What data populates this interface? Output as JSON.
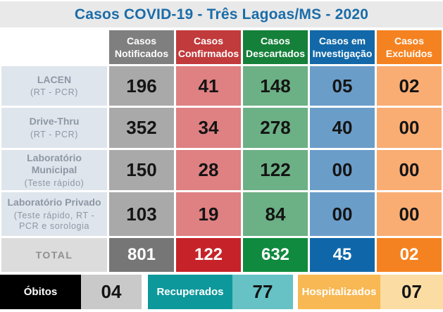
{
  "title": "Casos COVID-19 - Três Lagoas/MS - 2020",
  "header": {
    "columns": [
      "Casos\nNotificados",
      "Casos\nConfirmados",
      "Casos\nDescartados",
      "Casos em\nInvestigação",
      "Casos\nExcluídos"
    ]
  },
  "rows": [
    {
      "name": "LACEN",
      "sub": "(RT - PCR)",
      "values": [
        "196",
        "41",
        "148",
        "05",
        "02"
      ]
    },
    {
      "name": "Drive-Thru",
      "sub": "(RT - PCR)",
      "values": [
        "352",
        "34",
        "278",
        "40",
        "00"
      ]
    },
    {
      "name": "Laboratório Municipal",
      "sub": "(Teste rápido)",
      "values": [
        "150",
        "28",
        "122",
        "00",
        "00"
      ]
    },
    {
      "name": "Laboratório Privado",
      "sub": "(Teste rápido, RT - PCR e sorologia",
      "values": [
        "103",
        "19",
        "84",
        "00",
        "00"
      ]
    }
  ],
  "total": {
    "label": "TOTAL",
    "values": [
      "801",
      "122",
      "632",
      "45",
      "02"
    ]
  },
  "summary": [
    {
      "label": "Óbitos",
      "value": "04"
    },
    {
      "label": "Recuperados",
      "value": "77"
    },
    {
      "label": "Hospitalizados",
      "value": "07"
    }
  ],
  "colors": {
    "title_text": "#1b6ca8",
    "title_bar_bg": "#e9e9e9",
    "column_strong": [
      "#7f7f7f",
      "#c13a3c",
      "#15803a",
      "#1268a8",
      "#f58220"
    ],
    "column_light": [
      "#a9a9a9",
      "#df8082",
      "#6cb085",
      "#6b9dc9",
      "#f9ad73"
    ],
    "column_total": [
      "#767676",
      "#c52329",
      "#108a3e",
      "#0f67a9",
      "#f58220"
    ],
    "row_label_bg": "#dfe5ec",
    "row_label_text": "#8d97a4",
    "total_label_bg": "#dcdcdc",
    "obitos_bg": "#000000",
    "obitos_value_bg": "#c9c9c9",
    "recuperados_bg": "#0d989b",
    "recuperados_value_bg": "#66c2c5",
    "hospitalizados_bg": "#f8b853",
    "hospitalizados_value_bg": "#fbdca3"
  },
  "chart_data": {
    "type": "table",
    "title": "Casos COVID-19 - Três Lagoas/MS - 2020",
    "columns": [
      "Casos Notificados",
      "Casos Confirmados",
      "Casos Descartados",
      "Casos em Investigação",
      "Casos Excluídos"
    ],
    "rows": [
      {
        "label": "LACEN (RT - PCR)",
        "values": [
          196,
          41,
          148,
          5,
          2
        ]
      },
      {
        "label": "Drive-Thru (RT - PCR)",
        "values": [
          352,
          34,
          278,
          40,
          0
        ]
      },
      {
        "label": "Laboratório Municipal (Teste rápido)",
        "values": [
          150,
          28,
          122,
          0,
          0
        ]
      },
      {
        "label": "Laboratório Privado (Teste rápido, RT - PCR e sorologia",
        "values": [
          103,
          19,
          84,
          0,
          0
        ]
      },
      {
        "label": "TOTAL",
        "values": [
          801,
          122,
          632,
          45,
          2
        ]
      }
    ],
    "footer": {
      "obitos": 4,
      "recuperados": 77,
      "hospitalizados": 7
    }
  }
}
